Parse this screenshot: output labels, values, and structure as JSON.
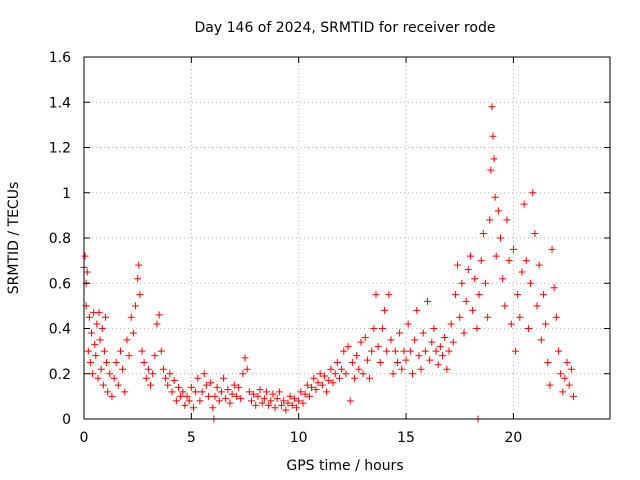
{
  "chart_data": {
    "type": "scatter",
    "title": "Day 146 of 2024, SRMTID for receiver rode",
    "xlabel": "GPS time / hours",
    "ylabel": "SRMTID / TECUs",
    "xlim": [
      0,
      24.5
    ],
    "ylim": [
      0,
      1.6
    ],
    "x_ticks": [
      0,
      5,
      10,
      15,
      20
    ],
    "x_tick_labels": [
      "0",
      "5",
      "10",
      "15",
      "20"
    ],
    "y_ticks": [
      0,
      0.2,
      0.4,
      0.6,
      0.8,
      1,
      1.2,
      1.4,
      1.6
    ],
    "y_tick_labels": [
      "0",
      "0.2",
      "0.4",
      "0.6",
      "0.8",
      "1",
      "1.2",
      "1.4",
      "1.6"
    ],
    "grid": true,
    "marker": "plus",
    "series_color": "#ff0000",
    "series": [
      {
        "name": "SRMTID",
        "points": [
          [
            0.0,
            0.67
          ],
          [
            0.05,
            0.72
          ],
          [
            0.1,
            0.6
          ],
          [
            0.1,
            0.5
          ],
          [
            0.15,
            0.65
          ],
          [
            0.2,
            0.3
          ],
          [
            0.25,
            0.45
          ],
          [
            0.3,
            0.25
          ],
          [
            0.35,
            0.38
          ],
          [
            0.4,
            0.2
          ],
          [
            0.45,
            0.47
          ],
          [
            0.5,
            0.33
          ],
          [
            0.55,
            0.28
          ],
          [
            0.6,
            0.42
          ],
          [
            0.65,
            0.18
          ],
          [
            0.7,
            0.47
          ],
          [
            0.75,
            0.35
          ],
          [
            0.8,
            0.22
          ],
          [
            0.85,
            0.4
          ],
          [
            0.9,
            0.15
          ],
          [
            0.95,
            0.3
          ],
          [
            1.0,
            0.45
          ],
          [
            1.05,
            0.25
          ],
          [
            1.1,
            0.12
          ],
          [
            1.2,
            0.2
          ],
          [
            1.3,
            0.1
          ],
          [
            1.4,
            0.18
          ],
          [
            1.5,
            0.25
          ],
          [
            1.6,
            0.15
          ],
          [
            1.7,
            0.3
          ],
          [
            1.8,
            0.22
          ],
          [
            1.9,
            0.12
          ],
          [
            2.0,
            0.35
          ],
          [
            2.1,
            0.28
          ],
          [
            2.2,
            0.45
          ],
          [
            2.3,
            0.38
          ],
          [
            2.4,
            0.5
          ],
          [
            2.5,
            0.62
          ],
          [
            2.55,
            0.68
          ],
          [
            2.6,
            0.55
          ],
          [
            2.7,
            0.3
          ],
          [
            2.8,
            0.25
          ],
          [
            2.9,
            0.18
          ],
          [
            3.0,
            0.22
          ],
          [
            3.1,
            0.15
          ],
          [
            3.2,
            0.2
          ],
          [
            3.3,
            0.28
          ],
          [
            3.4,
            0.42
          ],
          [
            3.5,
            0.46
          ],
          [
            3.6,
            0.3
          ],
          [
            3.7,
            0.22
          ],
          [
            3.8,
            0.18
          ],
          [
            3.9,
            0.15
          ],
          [
            4.0,
            0.2
          ],
          [
            4.1,
            0.12
          ],
          [
            4.2,
            0.17
          ],
          [
            4.3,
            0.08
          ],
          [
            4.4,
            0.14
          ],
          [
            4.5,
            0.1
          ],
          [
            4.6,
            0.12
          ],
          [
            4.7,
            0.06
          ],
          [
            4.8,
            0.1
          ],
          [
            4.9,
            0.08
          ],
          [
            5.0,
            0.14
          ],
          [
            5.1,
            0.05
          ],
          [
            5.2,
            0.12
          ],
          [
            5.3,
            0.18
          ],
          [
            5.4,
            0.08
          ],
          [
            5.5,
            0.12
          ],
          [
            5.6,
            0.2
          ],
          [
            5.7,
            0.15
          ],
          [
            5.8,
            0.1
          ],
          [
            5.9,
            0.16
          ],
          [
            6.0,
            0.05
          ],
          [
            6.05,
            0.0
          ],
          [
            6.1,
            0.1
          ],
          [
            6.2,
            0.14
          ],
          [
            6.3,
            0.08
          ],
          [
            6.4,
            0.12
          ],
          [
            6.5,
            0.18
          ],
          [
            6.6,
            0.09
          ],
          [
            6.7,
            0.13
          ],
          [
            6.8,
            0.07
          ],
          [
            6.9,
            0.11
          ],
          [
            7.0,
            0.15
          ],
          [
            7.1,
            0.1
          ],
          [
            7.2,
            0.14
          ],
          [
            7.3,
            0.09
          ],
          [
            7.4,
            0.2
          ],
          [
            7.5,
            0.27
          ],
          [
            7.6,
            0.22
          ],
          [
            7.7,
            0.12
          ],
          [
            7.8,
            0.08
          ],
          [
            7.9,
            0.11
          ],
          [
            8.0,
            0.06
          ],
          [
            8.1,
            0.1
          ],
          [
            8.2,
            0.13
          ],
          [
            8.3,
            0.07
          ],
          [
            8.4,
            0.09
          ],
          [
            8.5,
            0.12
          ],
          [
            8.6,
            0.06
          ],
          [
            8.7,
            0.08
          ],
          [
            8.8,
            0.11
          ],
          [
            8.9,
            0.05
          ],
          [
            9.0,
            0.09
          ],
          [
            9.1,
            0.12
          ],
          [
            9.2,
            0.06
          ],
          [
            9.3,
            0.08
          ],
          [
            9.4,
            0.04
          ],
          [
            9.5,
            0.07
          ],
          [
            9.6,
            0.1
          ],
          [
            9.7,
            0.06
          ],
          [
            9.8,
            0.09
          ],
          [
            9.9,
            0.05
          ],
          [
            10.0,
            0.08
          ],
          [
            10.1,
            0.12
          ],
          [
            10.2,
            0.07
          ],
          [
            10.3,
            0.11
          ],
          [
            10.4,
            0.15
          ],
          [
            10.5,
            0.1
          ],
          [
            10.6,
            0.14
          ],
          [
            10.7,
            0.18
          ],
          [
            10.8,
            0.13
          ],
          [
            10.9,
            0.16
          ],
          [
            11.0,
            0.2
          ],
          [
            11.1,
            0.15
          ],
          [
            11.2,
            0.19
          ],
          [
            11.3,
            0.12
          ],
          [
            11.4,
            0.17
          ],
          [
            11.5,
            0.22
          ],
          [
            11.6,
            0.16
          ],
          [
            11.7,
            0.2
          ],
          [
            11.8,
            0.25
          ],
          [
            11.9,
            0.18
          ],
          [
            12.0,
            0.22
          ],
          [
            12.1,
            0.3
          ],
          [
            12.2,
            0.2
          ],
          [
            12.3,
            0.32
          ],
          [
            12.4,
            0.08
          ],
          [
            12.5,
            0.25
          ],
          [
            12.6,
            0.18
          ],
          [
            12.7,
            0.28
          ],
          [
            12.8,
            0.22
          ],
          [
            12.9,
            0.34
          ],
          [
            13.0,
            0.2
          ],
          [
            13.1,
            0.36
          ],
          [
            13.2,
            0.26
          ],
          [
            13.3,
            0.18
          ],
          [
            13.4,
            0.3
          ],
          [
            13.5,
            0.4
          ],
          [
            13.6,
            0.55
          ],
          [
            13.7,
            0.32
          ],
          [
            13.8,
            0.25
          ],
          [
            13.9,
            0.4
          ],
          [
            14.0,
            0.48
          ],
          [
            14.1,
            0.3
          ],
          [
            14.2,
            0.55
          ],
          [
            14.3,
            0.35
          ],
          [
            14.4,
            0.2
          ],
          [
            14.5,
            0.3
          ],
          [
            14.6,
            0.25
          ],
          [
            14.7,
            0.38
          ],
          [
            14.8,
            0.22
          ],
          [
            14.9,
            0.3
          ],
          [
            15.0,
            0.26
          ],
          [
            15.1,
            0.42
          ],
          [
            15.2,
            0.3
          ],
          [
            15.3,
            0.2
          ],
          [
            15.4,
            0.35
          ],
          [
            15.5,
            0.48
          ],
          [
            15.6,
            0.28
          ],
          [
            15.7,
            0.22
          ],
          [
            15.8,
            0.38
          ],
          [
            15.9,
            0.3
          ],
          [
            16.0,
            0.52
          ],
          [
            16.1,
            0.26
          ],
          [
            16.2,
            0.34
          ],
          [
            16.3,
            0.4
          ],
          [
            16.4,
            0.3
          ],
          [
            16.5,
            0.24
          ],
          [
            16.6,
            0.32
          ],
          [
            16.7,
            0.28
          ],
          [
            16.8,
            0.36
          ],
          [
            16.9,
            0.22
          ],
          [
            17.0,
            0.3
          ],
          [
            17.1,
            0.42
          ],
          [
            17.2,
            0.34
          ],
          [
            17.3,
            0.55
          ],
          [
            17.4,
            0.68
          ],
          [
            17.5,
            0.45
          ],
          [
            17.6,
            0.6
          ],
          [
            17.7,
            0.38
          ],
          [
            17.8,
            0.52
          ],
          [
            17.9,
            0.66
          ],
          [
            18.0,
            0.72
          ],
          [
            18.1,
            0.48
          ],
          [
            18.2,
            0.62
          ],
          [
            18.3,
            0.4
          ],
          [
            18.35,
            0.0
          ],
          [
            18.4,
            0.55
          ],
          [
            18.5,
            0.7
          ],
          [
            18.6,
            0.82
          ],
          [
            18.7,
            0.6
          ],
          [
            18.8,
            0.45
          ],
          [
            18.9,
            0.88
          ],
          [
            18.95,
            1.1
          ],
          [
            19.0,
            1.38
          ],
          [
            19.05,
            1.25
          ],
          [
            19.1,
            1.15
          ],
          [
            19.15,
            0.98
          ],
          [
            19.2,
            0.72
          ],
          [
            19.3,
            0.92
          ],
          [
            19.4,
            0.8
          ],
          [
            19.5,
            0.62
          ],
          [
            19.6,
            0.5
          ],
          [
            19.7,
            0.88
          ],
          [
            19.8,
            0.7
          ],
          [
            19.9,
            0.42
          ],
          [
            20.0,
            0.75
          ],
          [
            20.1,
            0.3
          ],
          [
            20.2,
            0.55
          ],
          [
            20.3,
            0.45
          ],
          [
            20.4,
            0.65
          ],
          [
            20.5,
            0.95
          ],
          [
            20.6,
            0.7
          ],
          [
            20.7,
            0.4
          ],
          [
            20.8,
            0.6
          ],
          [
            20.9,
            1.0
          ],
          [
            21.0,
            0.82
          ],
          [
            21.1,
            0.5
          ],
          [
            21.2,
            0.68
          ],
          [
            21.3,
            0.35
          ],
          [
            21.4,
            0.55
          ],
          [
            21.5,
            0.42
          ],
          [
            21.6,
            0.25
          ],
          [
            21.7,
            0.15
          ],
          [
            21.8,
            0.75
          ],
          [
            21.9,
            0.58
          ],
          [
            22.0,
            0.45
          ],
          [
            22.1,
            0.3
          ],
          [
            22.2,
            0.2
          ],
          [
            22.3,
            0.12
          ],
          [
            22.4,
            0.18
          ],
          [
            22.5,
            0.25
          ],
          [
            22.6,
            0.15
          ],
          [
            22.7,
            0.22
          ],
          [
            22.8,
            0.1
          ]
        ]
      }
    ]
  }
}
